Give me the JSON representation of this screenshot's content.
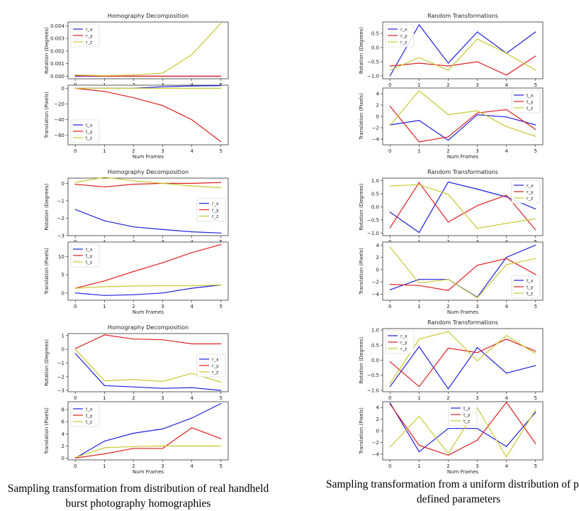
{
  "captions": {
    "left": "Sampling transformation from distribution of real handheld burst photography homographies",
    "right": "Sampling transformation from a uniform distribution of pre-defined parameters"
  },
  "chart_data": [
    {
      "type": "line",
      "title": "Homography Decomposition",
      "xlabel": "",
      "ylabel": "Rotation (Degrees)",
      "x": [
        0,
        1,
        2,
        3,
        4,
        5
      ],
      "xlim": [
        -0.25,
        5.25
      ],
      "ylim": [
        -0.0002,
        0.0043
      ],
      "yticks": [
        0,
        0.001,
        0.002,
        0.003,
        0.004
      ],
      "yticklabels": [
        "0.000",
        "0.001",
        "0.002",
        "0.003",
        "0.004"
      ],
      "legend_loc": "upper-left",
      "series": [
        {
          "name": "r_x",
          "color": "#1f1fe0",
          "values": [
            0,
            0,
            0,
            0,
            0,
            0
          ]
        },
        {
          "name": "r_y",
          "color": "#e01f1f",
          "values": [
            5e-05,
            0,
            0,
            0,
            0,
            0
          ]
        },
        {
          "name": "r_z",
          "color": "#c8c832",
          "values": [
            0.0001,
            5e-05,
            0.0001,
            0.00025,
            0.0017,
            0.0042
          ]
        }
      ]
    },
    {
      "type": "line",
      "title": "",
      "xlabel": "Num Frames",
      "ylabel": "Translation (Pixels)",
      "x": [
        0,
        1,
        2,
        3,
        4,
        5
      ],
      "xlim": [
        -0.25,
        5.25
      ],
      "ylim": [
        -72,
        4
      ],
      "yticks": [
        0,
        -20,
        -40,
        -60
      ],
      "yticklabels": [
        "0",
        "−20",
        "−40",
        "−60"
      ],
      "legend_loc": "lower-left",
      "series": [
        {
          "name": "t_x",
          "color": "#1f1fe0",
          "values": [
            0,
            0,
            0,
            2,
            3,
            3.5
          ]
        },
        {
          "name": "t_y",
          "color": "#e01f1f",
          "values": [
            0,
            -4,
            -12,
            -22,
            -40,
            -68
          ]
        },
        {
          "name": "t_z",
          "color": "#c8c832",
          "values": [
            0,
            0,
            0,
            0,
            0,
            0
          ]
        }
      ]
    },
    {
      "type": "line",
      "title": "Random Transformations",
      "xlabel": "",
      "ylabel": "Rotation (Degrees)",
      "x": [
        0,
        1,
        2,
        3,
        4,
        5
      ],
      "xlim": [
        -0.25,
        5.25
      ],
      "ylim": [
        -1.1,
        0.9
      ],
      "yticks": [
        0.5,
        0,
        -0.5,
        -1
      ],
      "yticklabels": [
        "0.5",
        "0.0",
        "−0.5",
        "−1.0"
      ],
      "legend_loc": "upper-left",
      "series": [
        {
          "name": "r_x",
          "color": "#1f1fe0",
          "values": [
            -1,
            0.8,
            -0.55,
            0.55,
            -0.2,
            0.55
          ]
        },
        {
          "name": "r_y",
          "color": "#e01f1f",
          "values": [
            -0.65,
            -0.55,
            -0.65,
            -0.5,
            -0.97,
            -0.3
          ]
        },
        {
          "name": "r_z",
          "color": "#c8c832",
          "values": [
            -0.8,
            -0.35,
            -0.8,
            0.3,
            -0.2,
            -0.8
          ]
        }
      ]
    },
    {
      "type": "line",
      "title": "",
      "xlabel": "Num Frames",
      "ylabel": "Translation (Pixels)",
      "x": [
        0,
        1,
        2,
        3,
        4,
        5
      ],
      "xlim": [
        -0.25,
        5.25
      ],
      "ylim": [
        -5,
        5
      ],
      "yticks": [
        4,
        2,
        0,
        -2,
        -4
      ],
      "yticklabels": [
        "4",
        "2",
        "0",
        "−2",
        "−4"
      ],
      "legend_loc": "upper-right",
      "series": [
        {
          "name": "t_x",
          "color": "#1f1fe0",
          "values": [
            -1.5,
            -0.7,
            -4.2,
            0.3,
            -0.1,
            -1.5
          ]
        },
        {
          "name": "t_y",
          "color": "#e01f1f",
          "values": [
            1.8,
            -4.5,
            -3.6,
            0.6,
            1.2,
            -2.3
          ]
        },
        {
          "name": "t_z",
          "color": "#c8c832",
          "values": [
            -1.6,
            4.5,
            0.3,
            1.0,
            -1.8,
            -3.5
          ]
        }
      ]
    },
    {
      "type": "line",
      "title": "Homography Decomposition",
      "xlabel": "",
      "ylabel": "Rotation (Degrees)",
      "x": [
        0,
        1,
        2,
        3,
        4,
        5
      ],
      "xlim": [
        -0.25,
        5.25
      ],
      "ylim": [
        -3.0,
        0.3
      ],
      "yticks": [
        0,
        -1,
        -2,
        -3
      ],
      "yticklabels": [
        "0",
        "−1",
        "−2",
        "−3"
      ],
      "legend_loc": "center-right",
      "series": [
        {
          "name": "r_x",
          "color": "#1f1fe0",
          "values": [
            -1.5,
            -2.15,
            -2.5,
            -2.65,
            -2.78,
            -2.85
          ]
        },
        {
          "name": "r_y",
          "color": "#e01f1f",
          "values": [
            -0.05,
            -0.2,
            -0.05,
            0,
            0,
            0.05
          ]
        },
        {
          "name": "r_z",
          "color": "#c8c832",
          "values": [
            0.05,
            0.35,
            0.15,
            0,
            -0.15,
            -0.25
          ]
        }
      ]
    },
    {
      "type": "line",
      "title": "",
      "xlabel": "Num Frames",
      "ylabel": "Translation (Pixels)",
      "x": [
        0,
        1,
        2,
        3,
        4,
        5
      ],
      "xlim": [
        -0.25,
        5.25
      ],
      "ylim": [
        -2,
        14
      ],
      "yticks": [
        10,
        5,
        0
      ],
      "yticklabels": [
        "10",
        "5",
        "0"
      ],
      "legend_loc": "upper-left",
      "series": [
        {
          "name": "t_x",
          "color": "#1f1fe0",
          "values": [
            0,
            -0.7,
            -0.5,
            0,
            1.3,
            2.2
          ]
        },
        {
          "name": "t_y",
          "color": "#e01f1f",
          "values": [
            1.3,
            3.3,
            5.9,
            8.3,
            11.1,
            13.3
          ]
        },
        {
          "name": "t_z",
          "color": "#c8c832",
          "values": [
            1.3,
            1.7,
            1.9,
            2.0,
            2.0,
            2.2
          ]
        }
      ]
    },
    {
      "type": "line",
      "title": "Random Transformations",
      "xlabel": "",
      "ylabel": "Rotation (Degrees)",
      "x": [
        0,
        1,
        2,
        3,
        4,
        5
      ],
      "xlim": [
        -0.25,
        5.25
      ],
      "ylim": [
        -1.1,
        1.1
      ],
      "yticks": [
        1,
        0.5,
        0,
        -0.5,
        -1
      ],
      "yticklabels": [
        "1.0",
        "0.5",
        "0.0",
        "−0.5",
        "−1.0"
      ],
      "legend_loc": "upper-right",
      "series": [
        {
          "name": "r_x",
          "color": "#1f1fe0",
          "values": [
            -0.2,
            -0.98,
            0.95,
            0.68,
            0.38,
            -0.08
          ]
        },
        {
          "name": "r_y",
          "color": "#e01f1f",
          "values": [
            -0.8,
            0.93,
            -0.58,
            0.05,
            0.45,
            -0.88
          ]
        },
        {
          "name": "r_z",
          "color": "#c8c832",
          "values": [
            0.8,
            0.85,
            0.48,
            -0.82,
            -0.63,
            -0.45
          ]
        }
      ]
    },
    {
      "type": "line",
      "title": "",
      "xlabel": "Num Frames",
      "ylabel": "Translation (Pixels)",
      "x": [
        0,
        1,
        2,
        3,
        4,
        5
      ],
      "xlim": [
        -0.25,
        5.25
      ],
      "ylim": [
        -5,
        4.5
      ],
      "yticks": [
        4,
        2,
        0,
        -2,
        -4
      ],
      "yticklabels": [
        "4",
        "2",
        "0",
        "−2",
        "−4"
      ],
      "legend_loc": "lower-right",
      "series": [
        {
          "name": "t_x",
          "color": "#1f1fe0",
          "values": [
            -3.3,
            -1.6,
            -1.6,
            -4.5,
            2.0,
            4.0
          ]
        },
        {
          "name": "t_y",
          "color": "#e01f1f",
          "values": [
            -2.4,
            -2.6,
            -3.4,
            0.7,
            1.8,
            -0.8
          ]
        },
        {
          "name": "t_z",
          "color": "#c8c832",
          "values": [
            3.7,
            -2.2,
            -1.6,
            -4.6,
            0.8,
            1.8
          ]
        }
      ]
    },
    {
      "type": "line",
      "title": "Homography Decomposition",
      "xlabel": "",
      "ylabel": "Rotation (Degrees)",
      "x": [
        0,
        1,
        2,
        3,
        4,
        5
      ],
      "xlim": [
        -0.25,
        5.25
      ],
      "ylim": [
        -3.1,
        1.15
      ],
      "yticks": [
        1,
        0,
        -1,
        -2,
        -3
      ],
      "yticklabels": [
        "1",
        "0",
        "−1",
        "−2",
        "−3"
      ],
      "legend_loc": "center-right",
      "series": [
        {
          "name": "r_x",
          "color": "#1f1fe0",
          "values": [
            -0.3,
            -2.65,
            -2.75,
            -2.85,
            -2.8,
            -3.0
          ]
        },
        {
          "name": "r_y",
          "color": "#e01f1f",
          "values": [
            0.05,
            1.05,
            0.75,
            0.7,
            0.4,
            0.4
          ]
        },
        {
          "name": "r_z",
          "color": "#c8c832",
          "values": [
            0,
            -2.3,
            -2.2,
            -2.35,
            -1.75,
            -2.4
          ]
        }
      ]
    },
    {
      "type": "line",
      "title": "",
      "xlabel": "Num Frames",
      "ylabel": "Translation (Pixels)",
      "x": [
        0,
        1,
        2,
        3,
        4,
        5
      ],
      "xlim": [
        -0.25,
        5.25
      ],
      "ylim": [
        -0.3,
        9.3
      ],
      "yticks": [
        8,
        6,
        4,
        2,
        0
      ],
      "yticklabels": [
        "8",
        "6",
        "4",
        "2",
        "0"
      ],
      "legend_loc": "upper-left",
      "series": [
        {
          "name": "t_x",
          "color": "#1f1fe0",
          "values": [
            0,
            2.8,
            4.1,
            4.8,
            6.6,
            9.0
          ]
        },
        {
          "name": "t_y",
          "color": "#e01f1f",
          "values": [
            0,
            0.7,
            1.6,
            1.6,
            5.0,
            3.2
          ]
        },
        {
          "name": "t_z",
          "color": "#c8c832",
          "values": [
            0.1,
            1.7,
            1.9,
            2.0,
            2.0,
            2.0
          ]
        }
      ]
    },
    {
      "type": "line",
      "title": "Random Transformations",
      "xlabel": "",
      "ylabel": "Rotation (Degrees)",
      "x": [
        0,
        1,
        2,
        3,
        4,
        5
      ],
      "xlim": [
        -0.25,
        5.25
      ],
      "ylim": [
        -1.05,
        1.05
      ],
      "yticks": [
        1,
        0.5,
        0,
        -0.5,
        -1
      ],
      "yticklabels": [
        "1.0",
        "0.5",
        "0.0",
        "−0.5",
        "−1.0"
      ],
      "legend_loc": "upper-left",
      "series": [
        {
          "name": "r_x",
          "color": "#1f1fe0",
          "values": [
            -0.88,
            0.45,
            -0.95,
            0.42,
            -0.43,
            -0.18
          ]
        },
        {
          "name": "r_y",
          "color": "#e01f1f",
          "values": [
            -0.05,
            -0.88,
            0.4,
            0.25,
            0.7,
            0.3
          ]
        },
        {
          "name": "r_z",
          "color": "#c8c832",
          "values": [
            -0.78,
            0.7,
            0.95,
            -0.02,
            0.82,
            0.22
          ]
        }
      ]
    },
    {
      "type": "line",
      "title": "",
      "xlabel": "Num Frames",
      "ylabel": "Translation (Pixels)",
      "x": [
        0,
        1,
        2,
        3,
        4,
        5
      ],
      "xlim": [
        -0.25,
        5.25
      ],
      "ylim": [
        -5,
        5
      ],
      "yticks": [
        4,
        2,
        0,
        -2,
        -4
      ],
      "yticklabels": [
        "4",
        "2",
        "0",
        "−2",
        "−4"
      ],
      "legend_loc": "upper-center",
      "series": [
        {
          "name": "t_x",
          "color": "#1f1fe0",
          "values": [
            4.8,
            -3.6,
            0.4,
            0.4,
            -2.7,
            3.2
          ]
        },
        {
          "name": "t_y",
          "color": "#e01f1f",
          "values": [
            4.6,
            -2.5,
            -4.2,
            -1.6,
            4.9,
            -2.2
          ]
        },
        {
          "name": "t_z",
          "color": "#c8c832",
          "values": [
            -2.8,
            2.5,
            -3.9,
            3.9,
            -4.5,
            3.6
          ]
        }
      ]
    }
  ]
}
